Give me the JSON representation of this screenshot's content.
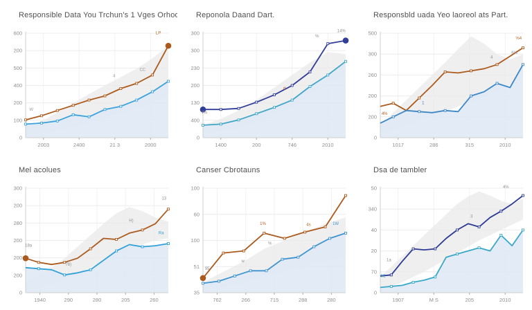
{
  "accent_colors": {
    "brown": "#ac5a1c",
    "navy": "#303d99",
    "sky": "#3ba2dc",
    "cyan": "#3fa6c8",
    "band_gray": "#e9e9e9",
    "area_blue": "#dfe9f5"
  },
  "chart_data": [
    {
      "type": "line",
      "title": "Responsible Data You Trchun's 1 Vges Orhoot",
      "y_ticks": [
        "600",
        "200",
        "500",
        "400",
        "200",
        "100",
        "0"
      ],
      "x_ticks": [
        "2003",
        "2400",
        "21 3",
        "2000"
      ],
      "band_upper": [
        0.1,
        0.16,
        0.24,
        0.33,
        0.42,
        0.5,
        0.58,
        0.66,
        0.76,
        0.88
      ],
      "band_lower": [
        0.02,
        0.04,
        0.07,
        0.11,
        0.15,
        0.19,
        0.24,
        0.28,
        0.34,
        0.42
      ],
      "series": [
        {
          "name": "brown-line",
          "color": "#ac5a1c",
          "values": [
            0.17,
            0.21,
            0.26,
            0.31,
            0.36,
            0.4,
            0.47,
            0.52,
            0.6,
            0.88
          ],
          "dots": [
            "end"
          ]
        },
        {
          "name": "blue-line",
          "color": "#3ba2dc",
          "values": [
            0.13,
            0.14,
            0.16,
            0.22,
            0.2,
            0.27,
            0.3,
            0.36,
            0.44,
            0.54
          ],
          "area": true,
          "dots": []
        }
      ],
      "annotations": [
        {
          "x": 0.04,
          "y": 0.24,
          "t": "W",
          "c": "#9a9a9a"
        },
        {
          "x": 0.62,
          "y": 0.56,
          "t": "4",
          "c": "#9a9a9a"
        },
        {
          "x": 0.82,
          "y": 0.62,
          "t": "CC",
          "c": "#9a9a9a"
        },
        {
          "x": 0.93,
          "y": 0.97,
          "t": "LP",
          "c": "#b06a2a"
        }
      ]
    },
    {
      "type": "line",
      "title": "Reponola Daand Dart.",
      "y_ticks": [
        "300",
        "300",
        "230",
        "200",
        "130",
        "400",
        "0"
      ],
      "x_ticks": [
        "1400",
        "200",
        "746",
        "2010"
      ],
      "band_upper": [
        0.12,
        0.18,
        0.26,
        0.36,
        0.48,
        0.6,
        0.72,
        0.82,
        0.8
      ],
      "band_lower": [
        0.04,
        0.06,
        0.1,
        0.16,
        0.22,
        0.3,
        0.42,
        0.55,
        0.6
      ],
      "series": [
        {
          "name": "navy-line",
          "color": "#303d99",
          "values": [
            0.27,
            0.27,
            0.28,
            0.34,
            0.41,
            0.5,
            0.63,
            0.9,
            0.93
          ],
          "dots": [
            "start",
            "end"
          ]
        },
        {
          "name": "cyan-line",
          "color": "#3fa6c8",
          "values": [
            0.12,
            0.13,
            0.17,
            0.23,
            0.29,
            0.36,
            0.49,
            0.6,
            0.73
          ],
          "area": true,
          "dots": []
        }
      ],
      "annotations": [
        {
          "x": 0.97,
          "y": 0.99,
          "t": "14%",
          "c": "#8f8f8f"
        },
        {
          "x": 0.8,
          "y": 0.94,
          "t": "%",
          "c": "#8f8f8f"
        },
        {
          "x": 0.57,
          "y": 0.44,
          "t": "d",
          "c": "#ac5a1c"
        },
        {
          "x": 0.01,
          "y": 0.21,
          "t": "7%",
          "c": "#8f8f8f"
        }
      ]
    },
    {
      "type": "line",
      "title": "Responsbld uada Yeo laoreol ats Part.",
      "y_ticks": [
        "500",
        "300",
        "260",
        "200",
        "200",
        "0"
      ],
      "x_ticks": [
        "1017",
        "286",
        "315",
        "2010"
      ],
      "band_upper": [
        0.12,
        0.24,
        0.36,
        0.48,
        0.6,
        0.72,
        0.85,
        0.97,
        0.9,
        0.8,
        0.75,
        0.8
      ],
      "band_lower": [
        0.04,
        0.08,
        0.12,
        0.16,
        0.2,
        0.25,
        0.3,
        0.35,
        0.4,
        0.45,
        0.5,
        0.55
      ],
      "series": [
        {
          "name": "brown-line",
          "color": "#ac5a1c",
          "values": [
            0.3,
            0.33,
            0.26,
            0.38,
            0.5,
            0.63,
            0.62,
            0.64,
            0.66,
            0.7,
            0.78,
            0.86
          ],
          "dots": []
        },
        {
          "name": "blue-line",
          "color": "#3d87c8",
          "values": [
            0.14,
            0.2,
            0.26,
            0.25,
            0.24,
            0.26,
            0.25,
            0.4,
            0.44,
            0.52,
            0.48,
            0.7
          ],
          "area": true,
          "dots": []
        }
      ],
      "annotations": [
        {
          "x": 0.97,
          "y": 0.92,
          "t": "%4",
          "c": "#b06a2a"
        },
        {
          "x": 0.94,
          "y": 0.78,
          "t": "6%",
          "c": "#8f8f8f"
        },
        {
          "x": 0.78,
          "y": 0.74,
          "t": "4",
          "c": "#8f8f8f"
        },
        {
          "x": 0.03,
          "y": 0.2,
          "t": "4%",
          "c": "#ac5a1c"
        },
        {
          "x": 0.3,
          "y": 0.3,
          "t": "1",
          "c": "#3d87c8"
        }
      ]
    },
    {
      "type": "line",
      "title": "Mel acolues",
      "y_ticks": [
        "300",
        "200",
        "280",
        "200",
        "200",
        "200",
        "0"
      ],
      "x_ticks": [
        "1940",
        "290",
        "280",
        "205",
        "260"
      ],
      "band_upper": [
        0.1,
        0.16,
        0.24,
        0.33,
        0.44,
        0.55,
        0.66,
        0.76,
        0.82,
        0.78,
        0.72,
        0.68
      ],
      "band_lower": [
        0.02,
        0.04,
        0.08,
        0.12,
        0.18,
        0.24,
        0.3,
        0.36,
        0.42,
        0.46,
        0.5,
        0.52
      ],
      "series": [
        {
          "name": "brown-line",
          "color": "#ac5a1c",
          "values": [
            0.33,
            0.29,
            0.27,
            0.29,
            0.33,
            0.42,
            0.52,
            0.51,
            0.57,
            0.6,
            0.66,
            0.8
          ],
          "dots": [
            "start"
          ]
        },
        {
          "name": "blue-line",
          "color": "#2fa0d8",
          "values": [
            0.24,
            0.23,
            0.22,
            0.17,
            0.19,
            0.22,
            0.31,
            0.4,
            0.46,
            0.44,
            0.45,
            0.47
          ],
          "area": true,
          "dots": []
        }
      ],
      "annotations": [
        {
          "x": 0.02,
          "y": 0.42,
          "t": "18a",
          "c": "#8f8f8f"
        },
        {
          "x": 0.3,
          "y": 0.24,
          "t": "78)",
          "c": "#8f8f8f"
        },
        {
          "x": 0.74,
          "y": 0.66,
          "t": "H)",
          "c": "#8f8f8f"
        },
        {
          "x": 0.97,
          "y": 0.87,
          "t": "13",
          "c": "#8f8f8f"
        },
        {
          "x": 0.95,
          "y": 0.54,
          "t": "Ra",
          "c": "#2fa0d8"
        }
      ]
    },
    {
      "type": "line",
      "title": "Canser Cbrotauns",
      "y_ticks": [
        "100",
        "60",
        "100",
        "51",
        "35"
      ],
      "x_ticks": [
        "762",
        "266",
        "715",
        "288",
        "280"
      ],
      "band_upper": [
        0.1,
        0.2,
        0.3,
        0.42,
        0.5,
        0.58,
        0.66,
        0.72
      ],
      "band_lower": [
        0.02,
        0.06,
        0.1,
        0.16,
        0.2,
        0.26,
        0.3,
        0.35
      ],
      "series": [
        {
          "name": "brown-line",
          "color": "#ac5a1c",
          "values": [
            0.14,
            0.38,
            0.4,
            0.57,
            0.52,
            0.58,
            0.63,
            0.93
          ],
          "dots": [
            "start"
          ]
        },
        {
          "name": "blue-line",
          "color": "#3f93cf",
          "values": [
            0.09,
            0.11,
            0.16,
            0.21,
            0.21,
            0.32,
            0.34,
            0.44,
            0.52,
            0.57
          ],
          "area": true,
          "dots": []
        }
      ],
      "annotations": [
        {
          "x": 0.03,
          "y": 0.2,
          "t": "95",
          "c": "#8f8f8f"
        },
        {
          "x": 0.42,
          "y": 0.63,
          "t": "1%",
          "c": "#ac5a1c"
        },
        {
          "x": 0.47,
          "y": 0.44,
          "t": "%",
          "c": "#8f8f8f"
        },
        {
          "x": 0.28,
          "y": 0.27,
          "t": "w",
          "c": "#8f8f8f"
        },
        {
          "x": 0.74,
          "y": 0.62,
          "t": "4s",
          "c": "#b06a2a"
        },
        {
          "x": 0.93,
          "y": 0.63,
          "t": "1W",
          "c": "#3f93cf"
        }
      ]
    },
    {
      "type": "line",
      "title": "Dsa de tambler",
      "y_ticks": [
        "50",
        "340",
        "40",
        "20",
        "70",
        "0"
      ],
      "x_ticks": [
        "1907",
        "M S",
        "205",
        "2010"
      ],
      "band_upper": [
        0.15,
        0.25,
        0.35,
        0.45,
        0.55,
        0.65,
        0.75,
        0.85,
        0.92,
        0.97,
        0.93,
        0.88,
        0.85,
        0.9
      ],
      "band_lower": [
        0.02,
        0.06,
        0.1,
        0.15,
        0.2,
        0.26,
        0.32,
        0.38,
        0.44,
        0.5,
        0.55,
        0.6,
        0.65,
        0.7
      ],
      "series": [
        {
          "name": "navy-line",
          "color": "#2c3a96",
          "values": [
            0.16,
            0.17,
            0.3,
            0.42,
            0.41,
            0.42,
            0.52,
            0.6,
            0.66,
            0.63,
            0.72,
            0.78,
            0.85,
            0.93
          ],
          "dots": []
        },
        {
          "name": "cyan-line",
          "color": "#39a8c8",
          "values": [
            0.05,
            0.06,
            0.07,
            0.1,
            0.12,
            0.15,
            0.34,
            0.37,
            0.4,
            0.43,
            0.4,
            0.55,
            0.45,
            0.6
          ],
          "area": true,
          "dots": []
        }
      ],
      "annotations": [
        {
          "x": 0.06,
          "y": 0.28,
          "t": "1a",
          "c": "#8f8f8f"
        },
        {
          "x": 0.02,
          "y": 0.13,
          "t": "51",
          "c": "#39a8c8"
        },
        {
          "x": 0.64,
          "y": 0.7,
          "t": "3",
          "c": "#8f8f8f"
        },
        {
          "x": 0.88,
          "y": 0.98,
          "t": "4%",
          "c": "#8f8f8f"
        }
      ]
    }
  ],
  "style": {
    "grid_line": "#ececec",
    "v_grid_line": "#f1f1f1",
    "axis_line": "#cfcfcf",
    "tick_text": "#8f8f8f",
    "band_fill": "#e9e9e9",
    "area_fill": "#dfe9f5"
  }
}
